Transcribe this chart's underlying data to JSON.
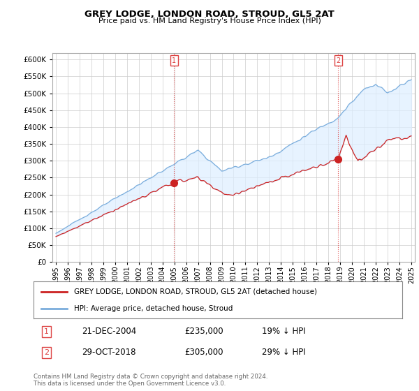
{
  "title": "GREY LODGE, LONDON ROAD, STROUD, GL5 2AT",
  "subtitle": "Price paid vs. HM Land Registry's House Price Index (HPI)",
  "ytick_values": [
    0,
    50000,
    100000,
    150000,
    200000,
    250000,
    300000,
    350000,
    400000,
    450000,
    500000,
    550000,
    600000
  ],
  "ylim": [
    0,
    620000
  ],
  "xlim_start": 1994.7,
  "xlim_end": 2025.3,
  "xtick_years": [
    1995,
    1996,
    1997,
    1998,
    1999,
    2000,
    2001,
    2002,
    2003,
    2004,
    2005,
    2006,
    2007,
    2008,
    2009,
    2010,
    2011,
    2012,
    2013,
    2014,
    2015,
    2016,
    2017,
    2018,
    2019,
    2020,
    2021,
    2022,
    2023,
    2024,
    2025
  ],
  "hpi_color": "#7aaddc",
  "hpi_fill_color": "#ddeeff",
  "price_color": "#cc2222",
  "vline_color": "#dd4444",
  "marker1_x": 2004.97,
  "marker1_y": 235000,
  "marker1_hpi_y": 290000,
  "marker2_x": 2018.83,
  "marker2_y": 305000,
  "marker2_hpi_y": 430000,
  "legend_entries": [
    "GREY LODGE, LONDON ROAD, STROUD, GL5 2AT (detached house)",
    "HPI: Average price, detached house, Stroud"
  ],
  "annotation1_label": "1",
  "annotation1_date": "21-DEC-2004",
  "annotation1_price": "£235,000",
  "annotation1_hpi": "19% ↓ HPI",
  "annotation2_label": "2",
  "annotation2_date": "29-OCT-2018",
  "annotation2_price": "£305,000",
  "annotation2_hpi": "29% ↓ HPI",
  "footer": "Contains HM Land Registry data © Crown copyright and database right 2024.\nThis data is licensed under the Open Government Licence v3.0.",
  "background_color": "#ffffff",
  "grid_color": "#cccccc"
}
